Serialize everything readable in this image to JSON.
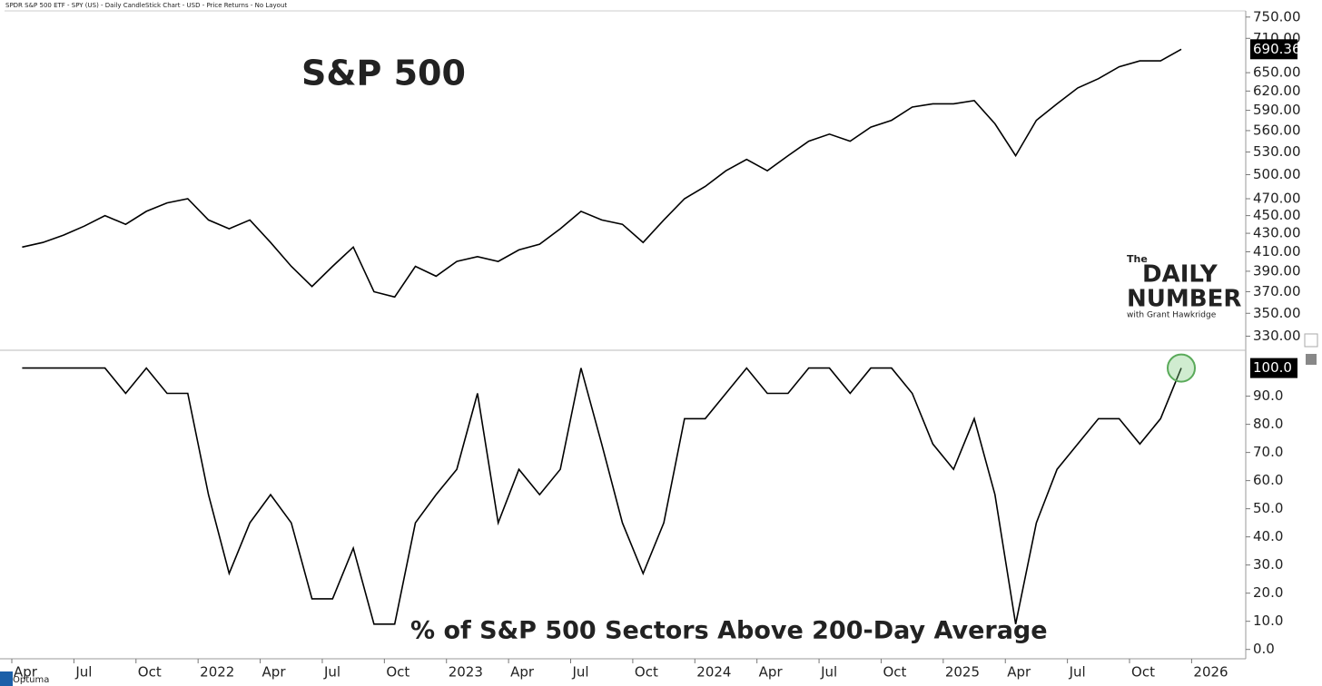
{
  "header": "SPDR S&P 500 ETF - SPY (US) - Daily CandleStick Chart - USD - Price Returns - No Layout",
  "logo": {
    "the": "The",
    "daily": "DAILY",
    "number": "NUMBER",
    "byline": "with Grant Hawkridge"
  },
  "footer_brand": "Optuma",
  "chart_data": [
    {
      "type": "line",
      "title": "S&P 500",
      "log_scale": true,
      "x": [
        "2021-04",
        "2021-05",
        "2021-06",
        "2021-07",
        "2021-08",
        "2021-09",
        "2021-10",
        "2021-11",
        "2021-12",
        "2022-01",
        "2022-02",
        "2022-03",
        "2022-04",
        "2022-05",
        "2022-06",
        "2022-07",
        "2022-08",
        "2022-09",
        "2022-10",
        "2022-11",
        "2022-12",
        "2023-01",
        "2023-02",
        "2023-03",
        "2023-04",
        "2023-05",
        "2023-06",
        "2023-07",
        "2023-08",
        "2023-09",
        "2023-10",
        "2023-11",
        "2023-12",
        "2024-01",
        "2024-02",
        "2024-03",
        "2024-04",
        "2024-05",
        "2024-06",
        "2024-07",
        "2024-08",
        "2024-09",
        "2024-10",
        "2024-11",
        "2024-12",
        "2025-01",
        "2025-02",
        "2025-03",
        "2025-04",
        "2025-05",
        "2025-06",
        "2025-07",
        "2025-08",
        "2025-09",
        "2025-10",
        "2025-11",
        "2025-12"
      ],
      "series": [
        {
          "name": "SPY",
          "color": "#000000",
          "values": [
            415,
            420,
            428,
            438,
            450,
            440,
            455,
            465,
            470,
            445,
            435,
            445,
            420,
            395,
            375,
            395,
            415,
            370,
            365,
            395,
            385,
            400,
            405,
            400,
            412,
            418,
            435,
            455,
            445,
            440,
            420,
            445,
            470,
            485,
            505,
            520,
            505,
            525,
            545,
            555,
            545,
            565,
            575,
            595,
            600,
            600,
            605,
            570,
            525,
            575,
            600,
            625,
            640,
            660,
            670,
            670,
            690.36
          ]
        }
      ],
      "xlim": [
        "2021-04",
        "2026-03"
      ],
      "ylim": [
        319,
        762
      ],
      "yticks": [
        {
          "value": 330,
          "label": "330.00"
        },
        {
          "value": 350,
          "label": "350.00"
        },
        {
          "value": 370,
          "label": "370.00"
        },
        {
          "value": 390,
          "label": "390.00"
        },
        {
          "value": 410,
          "label": "410.00"
        },
        {
          "value": 430,
          "label": "430.00"
        },
        {
          "value": 450,
          "label": "450.00"
        },
        {
          "value": 470,
          "label": "470.00"
        },
        {
          "value": 500,
          "label": "500.00"
        },
        {
          "value": 530,
          "label": "530.00"
        },
        {
          "value": 560,
          "label": "560.00"
        },
        {
          "value": 590,
          "label": "590.00"
        },
        {
          "value": 620,
          "label": "620.00"
        },
        {
          "value": 650,
          "label": "650.00"
        },
        {
          "value": 710,
          "label": "710.00"
        },
        {
          "value": 750,
          "label": "750.00"
        }
      ]
    },
    {
      "type": "line",
      "title": "% of S&P 500 Sectors Above 200-Day Average",
      "last_value_label": "100.0",
      "x": [
        "2021-04",
        "2021-05",
        "2021-06",
        "2021-07",
        "2021-08",
        "2021-09",
        "2021-10",
        "2021-11",
        "2021-12",
        "2022-01",
        "2022-02",
        "2022-03",
        "2022-04",
        "2022-05",
        "2022-06",
        "2022-07",
        "2022-08",
        "2022-09",
        "2022-10",
        "2022-11",
        "2022-12",
        "2023-01",
        "2023-02",
        "2023-03",
        "2023-04",
        "2023-05",
        "2023-06",
        "2023-07",
        "2023-08",
        "2023-09",
        "2023-10",
        "2023-11",
        "2023-12",
        "2024-01",
        "2024-02",
        "2024-03",
        "2024-04",
        "2024-05",
        "2024-06",
        "2024-07",
        "2024-08",
        "2024-09",
        "2024-10",
        "2024-11",
        "2024-12",
        "2025-01",
        "2025-02",
        "2025-03",
        "2025-04",
        "2025-05",
        "2025-06",
        "2025-07",
        "2025-08",
        "2025-09",
        "2025-10",
        "2025-11",
        "2025-12"
      ],
      "series": [
        {
          "name": "Sectors Above 200-Day",
          "color": "#000000",
          "values": [
            100,
            100,
            100,
            100,
            100,
            91,
            100,
            91,
            91,
            55,
            27,
            45,
            55,
            45,
            18,
            18,
            36,
            9,
            9,
            45,
            55,
            64,
            91,
            45,
            64,
            55,
            64,
            100,
            73,
            45,
            27,
            45,
            82,
            82,
            91,
            100,
            91,
            91,
            100,
            100,
            91,
            100,
            100,
            91,
            73,
            64,
            82,
            55,
            9,
            45,
            64,
            73,
            82,
            82,
            73,
            82,
            100
          ]
        }
      ],
      "xlim": [
        "2021-04",
        "2026-03"
      ],
      "ylim": [
        -3,
        106
      ],
      "yticks": [
        {
          "value": 0,
          "label": "0.0"
        },
        {
          "value": 10,
          "label": "10.0"
        },
        {
          "value": 20,
          "label": "20.0"
        },
        {
          "value": 30,
          "label": "30.0"
        },
        {
          "value": 40,
          "label": "40.0"
        },
        {
          "value": 50,
          "label": "50.0"
        },
        {
          "value": 60,
          "label": "60.0"
        },
        {
          "value": 70,
          "label": "70.0"
        },
        {
          "value": 80,
          "label": "80.0"
        },
        {
          "value": 90,
          "label": "90.0"
        }
      ],
      "xticks": [
        {
          "value": "2021-04",
          "label": "Apr"
        },
        {
          "value": "2021-07",
          "label": "Jul"
        },
        {
          "value": "2021-10",
          "label": "Oct"
        },
        {
          "value": "2022-01",
          "label": "2022"
        },
        {
          "value": "2022-04",
          "label": "Apr"
        },
        {
          "value": "2022-07",
          "label": "Jul"
        },
        {
          "value": "2022-10",
          "label": "Oct"
        },
        {
          "value": "2023-01",
          "label": "2023"
        },
        {
          "value": "2023-04",
          "label": "Apr"
        },
        {
          "value": "2023-07",
          "label": "Jul"
        },
        {
          "value": "2023-10",
          "label": "Oct"
        },
        {
          "value": "2024-01",
          "label": "2024"
        },
        {
          "value": "2024-04",
          "label": "Apr"
        },
        {
          "value": "2024-07",
          "label": "Jul"
        },
        {
          "value": "2024-10",
          "label": "Oct"
        },
        {
          "value": "2025-01",
          "label": "2025"
        },
        {
          "value": "2025-04",
          "label": "Apr"
        },
        {
          "value": "2025-07",
          "label": "Jul"
        },
        {
          "value": "2025-10",
          "label": "Oct"
        },
        {
          "value": "2026-01",
          "label": "2026"
        }
      ]
    }
  ]
}
